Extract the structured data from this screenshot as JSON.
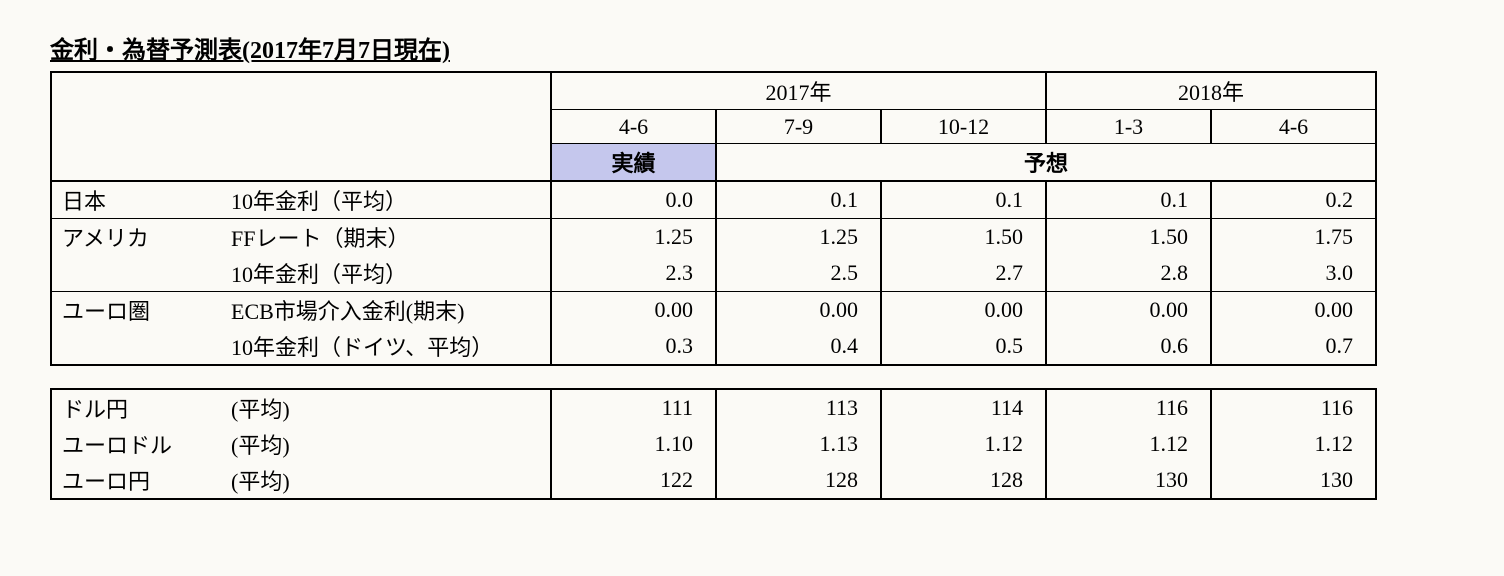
{
  "title": "金利・為替予測表(2017年7月7日現在)",
  "years": {
    "y2017": "2017年",
    "y2018": "2018年"
  },
  "quarters": {
    "q1": "4-6",
    "q2": "7-9",
    "q3": "10-12",
    "q4": "1-3",
    "q5": "4-6"
  },
  "headers": {
    "actual": "実績",
    "forecast": "予想"
  },
  "regions": {
    "japan": "日本",
    "america": "アメリカ",
    "eurozone": "ユーロ圏"
  },
  "indicators": {
    "jp_10y": "10年金利（平均）",
    "us_ff": "FFレート（期末）",
    "us_10y": "10年金利（平均）",
    "eu_ecb": "ECB市場介入金利(期末)",
    "eu_10y": "10年金利（ドイツ、平均）",
    "usdjpy": "ドル円",
    "eurusd": "ユーロドル",
    "eurjpy": "ユーロ円",
    "avg": "(平均)"
  },
  "values": {
    "jp_10y": {
      "q1": "0.0",
      "q2": "0.1",
      "q3": "0.1",
      "q4": "0.1",
      "q5": "0.2"
    },
    "us_ff": {
      "q1": "1.25",
      "q2": "1.25",
      "q3": "1.50",
      "q4": "1.50",
      "q5": "1.75"
    },
    "us_10y": {
      "q1": "2.3",
      "q2": "2.5",
      "q3": "2.7",
      "q4": "2.8",
      "q5": "3.0"
    },
    "eu_ecb": {
      "q1": "0.00",
      "q2": "0.00",
      "q3": "0.00",
      "q4": "0.00",
      "q5": "0.00"
    },
    "eu_10y": {
      "q1": "0.3",
      "q2": "0.4",
      "q3": "0.5",
      "q4": "0.6",
      "q5": "0.7"
    },
    "usdjpy": {
      "q1": "111",
      "q2": "113",
      "q3": "114",
      "q4": "116",
      "q5": "116"
    },
    "eurusd": {
      "q1": "1.10",
      "q2": "1.13",
      "q3": "1.12",
      "q4": "1.12",
      "q5": "1.12"
    },
    "eurjpy": {
      "q1": "122",
      "q2": "128",
      "q3": "128",
      "q4": "130",
      "q5": "130"
    }
  },
  "colors": {
    "actual_bg": "#c5c7ed",
    "background": "#fbfaf6",
    "border": "#000000"
  },
  "font": {
    "family": "MS Mincho",
    "size_body": 22,
    "size_title": 24
  }
}
